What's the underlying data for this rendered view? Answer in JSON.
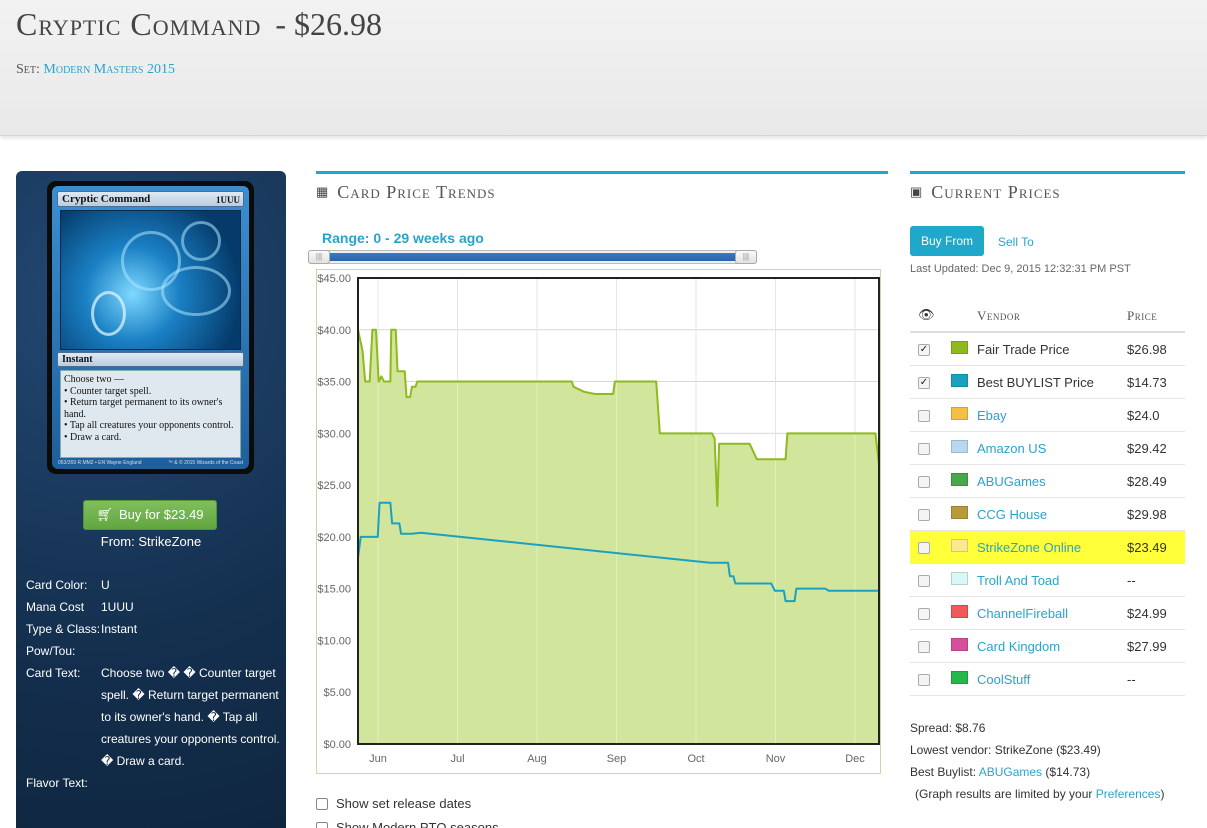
{
  "header": {
    "card_name": "Cryptic Command",
    "price": "- $26.98",
    "set_label": "Set:",
    "set_name": "Modern Masters 2015"
  },
  "card_image": {
    "title": "Cryptic Command",
    "mana": "1UUU",
    "type_line": "Instant",
    "rules_text": [
      "Choose two —",
      "• Counter target spell.",
      "• Return target permanent to its owner's hand.",
      "• Tap all creatures your opponents control.",
      "• Draw a card."
    ],
    "footer_left": "063/269 R  MM2 • EN  Wayne England",
    "footer_right": "™ & © 2015 Wizards of the Coast"
  },
  "left_panel": {
    "buy_button": "Buy for $23.49",
    "from": "From: StrikeZone",
    "attributes": [
      {
        "key": "Card Color:",
        "value": "U"
      },
      {
        "key": "Mana Cost",
        "value": "1UUU"
      },
      {
        "key": "Type & Class:",
        "value": "Instant"
      },
      {
        "key": "Pow/Tou:",
        "value": ""
      },
      {
        "key": "Card Text:",
        "value": "Choose two � � Counter target spell. � Return target permanent to its owner's hand. � Tap all creatures your opponents control. � Draw a card."
      },
      {
        "key": "Flavor Text:",
        "value": ""
      }
    ]
  },
  "trends": {
    "title": "Card Price Trends",
    "range_label": "Range: 0 - 29 weeks ago",
    "options": [
      "Show set release dates",
      "Show Modern PTQ seasons"
    ]
  },
  "chart_data": {
    "type": "line",
    "title": "",
    "xlabel": "",
    "ylabel": "",
    "ylim": [
      0,
      45
    ],
    "yticks": [
      "$0.00",
      "$5.00",
      "$10.00",
      "$15.00",
      "$20.00",
      "$25.00",
      "$30.00",
      "$35.00",
      "$40.00",
      "$45.00"
    ],
    "xticks": [
      "Jun",
      "Jul",
      "Aug",
      "Sep",
      "Oct",
      "Nov",
      "Dec"
    ],
    "x_range_weeks": [
      0,
      29
    ],
    "series": [
      {
        "color": "#8fba1e",
        "fill": "#d2e59c",
        "points": [
          [
            0,
            40
          ],
          [
            0.25,
            38
          ],
          [
            0.4,
            35
          ],
          [
            0.65,
            35
          ],
          [
            0.8,
            40
          ],
          [
            1.0,
            40
          ],
          [
            1.15,
            35
          ],
          [
            1.3,
            35.5
          ],
          [
            1.45,
            35
          ],
          [
            1.8,
            35
          ],
          [
            1.85,
            40
          ],
          [
            2.1,
            40
          ],
          [
            2.2,
            36
          ],
          [
            2.6,
            36
          ],
          [
            2.7,
            33.5
          ],
          [
            2.9,
            33.5
          ],
          [
            3.0,
            34.5
          ],
          [
            3.2,
            34.5
          ],
          [
            3.3,
            35
          ],
          [
            11.9,
            35
          ],
          [
            12.0,
            34.5
          ],
          [
            12.6,
            34
          ],
          [
            13.2,
            33.8
          ],
          [
            14.2,
            33.8
          ],
          [
            14.3,
            35
          ],
          [
            16.6,
            35
          ],
          [
            16.8,
            30
          ],
          [
            19.7,
            30
          ],
          [
            19.85,
            29.5
          ],
          [
            20.0,
            23
          ],
          [
            20.1,
            29
          ],
          [
            21.8,
            29
          ],
          [
            22.2,
            27.5
          ],
          [
            23.8,
            27.5
          ],
          [
            23.9,
            30
          ],
          [
            28.8,
            30
          ],
          [
            29,
            27
          ]
        ]
      },
      {
        "color": "#1aa1c2",
        "points": [
          [
            0,
            18
          ],
          [
            0.15,
            20
          ],
          [
            1.1,
            20
          ],
          [
            1.2,
            23.3
          ],
          [
            1.8,
            23.3
          ],
          [
            1.9,
            21.3
          ],
          [
            2.3,
            21.3
          ],
          [
            2.4,
            20.3
          ],
          [
            3.0,
            20.3
          ],
          [
            3.5,
            20.4
          ],
          [
            19.6,
            17.5
          ],
          [
            20.6,
            17.5
          ],
          [
            20.7,
            16.2
          ],
          [
            20.9,
            16.2
          ],
          [
            21.0,
            15.5
          ],
          [
            23.0,
            15.5
          ],
          [
            23.2,
            14.8
          ],
          [
            23.7,
            14.8
          ],
          [
            23.8,
            13.8
          ],
          [
            24.3,
            13.8
          ],
          [
            24.4,
            15
          ],
          [
            26.0,
            15
          ],
          [
            26.2,
            14.8
          ],
          [
            29,
            14.8
          ]
        ]
      }
    ]
  },
  "prices": {
    "title": "Current Prices",
    "tab_buy": "Buy From",
    "tab_sell": "Sell To",
    "last_updated": "Last Updated: Dec 9, 2015 12:32:31 PM PST",
    "col_vendor": "Vendor",
    "col_price": "Price",
    "rows": [
      {
        "vendor": "Fair Trade Price",
        "price": "$26.98",
        "color": "#8fba1e",
        "checked": "✓",
        "link": false,
        "highlight": false
      },
      {
        "vendor": "Best BUYLIST Price",
        "price": "$14.73",
        "color": "#1aa1c2",
        "checked": "✓",
        "link": false,
        "highlight": false
      },
      {
        "vendor": "Ebay",
        "price": "$24.0",
        "color": "#f2c045",
        "checked": "",
        "link": true,
        "highlight": false
      },
      {
        "vendor": "Amazon US",
        "price": "$29.42",
        "color": "#b8d8f2",
        "checked": "",
        "link": true,
        "highlight": false
      },
      {
        "vendor": "ABUGames",
        "price": "$28.49",
        "color": "#4aa64a",
        "checked": "",
        "link": true,
        "highlight": false
      },
      {
        "vendor": "CCG House",
        "price": "$29.98",
        "color": "#b89a3a",
        "checked": "",
        "link": true,
        "highlight": false
      },
      {
        "vendor": "StrikeZone Online",
        "price": "$23.49",
        "color": "#ffe88c",
        "checked": "",
        "link": true,
        "highlight": true
      },
      {
        "vendor": "Troll And Toad",
        "price": "--",
        "color": "#d9f7f7",
        "checked": "",
        "link": true,
        "highlight": false
      },
      {
        "vendor": "ChannelFireball",
        "price": "$24.99",
        "color": "#f05a5a",
        "checked": "",
        "link": true,
        "highlight": false
      },
      {
        "vendor": "Card Kingdom",
        "price": "$27.99",
        "color": "#d4519a",
        "checked": "",
        "link": true,
        "highlight": false
      },
      {
        "vendor": "CoolStuff",
        "price": "--",
        "color": "#22b84a",
        "checked": "",
        "link": true,
        "highlight": false
      }
    ],
    "spread": "Spread: $8.76",
    "lowest_vendor": "Lowest vendor: StrikeZone ($23.49)",
    "best_buylist_label": "Best Buylist:",
    "best_buylist_vendor": "ABUGames",
    "best_buylist_price": "($14.73)",
    "graph_note_pre": "(Graph results are limited by your",
    "graph_note_link": "Preferences",
    "graph_note_post": ")"
  }
}
